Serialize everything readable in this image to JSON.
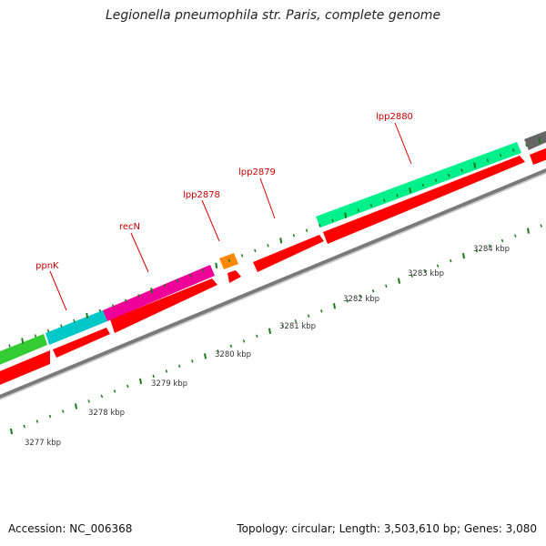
{
  "title": "Legionella pneumophila str. Paris, complete genome",
  "footer": {
    "accession": "Accession: NC_006368",
    "summary": "Topology: circular; Length: 3,503,610 bp; Genes: 3,080"
  },
  "colors": {
    "gene_label": "#cc0000",
    "leader_line": "#dd0000",
    "tick": "#1a7a1a",
    "backbone": "#808080",
    "cds": "#ff0000"
  },
  "genes": [
    {
      "name": "ppnK",
      "color": "#00c8c8"
    },
    {
      "name": "recN",
      "color": "#ee0099"
    },
    {
      "name": "lpp2878",
      "color": "#ff8800"
    },
    {
      "name": "lpp2879",
      "color": "#ff0000"
    },
    {
      "name": "lpp2880",
      "color": "#00f08c"
    },
    {
      "name": "",
      "color": "#33cc33"
    },
    {
      "name": "",
      "color": "#666666"
    }
  ],
  "tick_labels": [
    "3277 kbp",
    "3278 kbp",
    "3279 kbp",
    "3280 kbp",
    "3281 kbp",
    "3282 kbp",
    "3283 kbp",
    "3284 kbp"
  ]
}
